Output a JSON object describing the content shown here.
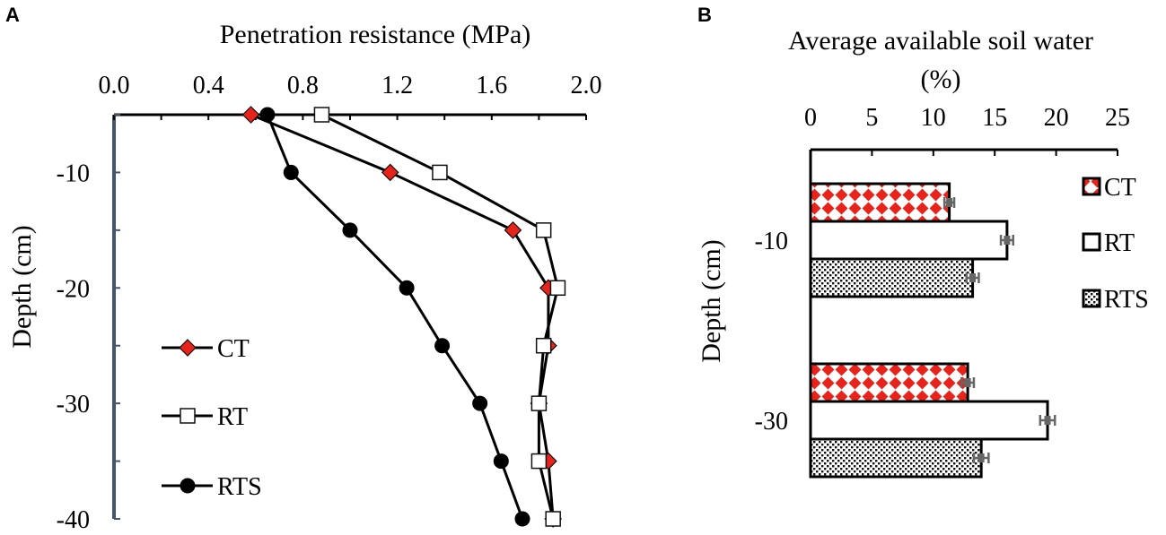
{
  "chart_data": [
    {
      "panel": "A",
      "type": "line",
      "title": "",
      "xlabel": "Penetration resistance (MPa)",
      "ylabel": "Depth (cm)",
      "xlim": [
        0.0,
        2.0
      ],
      "ylim": [
        -40,
        -5
      ],
      "xticks": [
        "0.0",
        "0.4",
        "0.8",
        "1.2",
        "1.6",
        "2.0"
      ],
      "yticks": [
        "-10",
        "-20",
        "-30",
        "-40"
      ],
      "depth": [
        -5,
        -10,
        -15,
        -20,
        -25,
        -30,
        -35,
        -40
      ],
      "series": [
        {
          "name": "CT",
          "marker": "diamond",
          "color": "#e8231c",
          "values": [
            0.58,
            1.17,
            1.69,
            1.84,
            1.84,
            1.8,
            1.84,
            1.86
          ]
        },
        {
          "name": "RT",
          "marker": "square",
          "color": "#ffffff",
          "values": [
            0.88,
            1.38,
            1.82,
            1.88,
            1.82,
            1.8,
            1.8,
            1.86
          ]
        },
        {
          "name": "RTS",
          "marker": "circle",
          "color": "#000000",
          "values": [
            0.65,
            0.75,
            1.0,
            1.24,
            1.39,
            1.55,
            1.64,
            1.73
          ]
        }
      ],
      "legend": {
        "position": "bottom-left",
        "labels": [
          "CT",
          "RT",
          "RTS"
        ]
      }
    },
    {
      "panel": "B",
      "type": "bar",
      "orientation": "horizontal",
      "title": "",
      "xlabel_line1": "Average available soil water",
      "xlabel_line2": "(%)",
      "ylabel": "Depth (cm)",
      "xlim": [
        0,
        25
      ],
      "xticks": [
        "0",
        "5",
        "10",
        "15",
        "20",
        "25"
      ],
      "categories": [
        "-10",
        "-30"
      ],
      "series": [
        {
          "name": "CT",
          "pattern": "red-diamond",
          "values": [
            11.3,
            12.8
          ],
          "errors": [
            0.4,
            0.5
          ]
        },
        {
          "name": "RT",
          "pattern": "white",
          "values": [
            16.0,
            19.3
          ],
          "errors": [
            0.5,
            0.6
          ]
        },
        {
          "name": "RTS",
          "pattern": "black-dots",
          "values": [
            13.2,
            13.9
          ],
          "errors": [
            0.5,
            0.6
          ]
        }
      ],
      "legend": {
        "position": "top-right",
        "labels": [
          "CT",
          "RT",
          "RTS"
        ]
      }
    }
  ]
}
